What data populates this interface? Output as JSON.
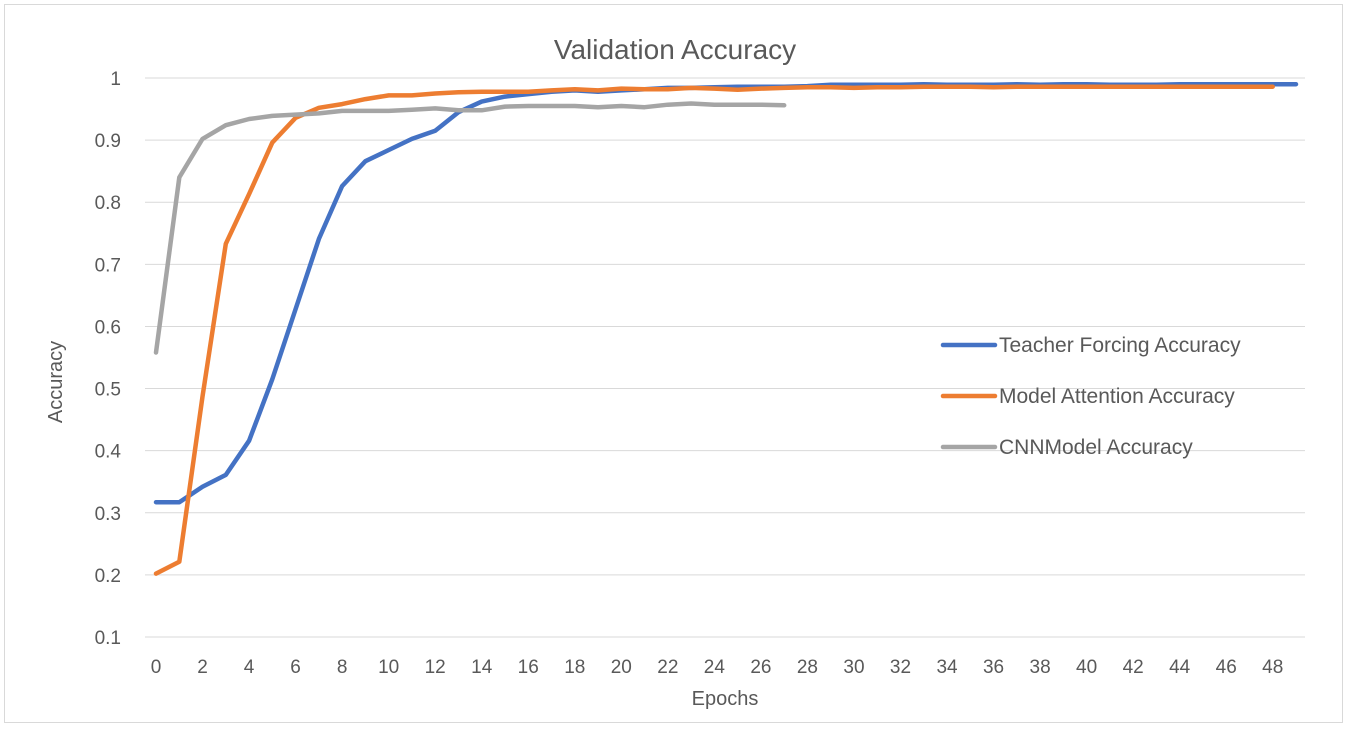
{
  "chart_data": {
    "type": "line",
    "title": "Validation Accuracy",
    "xlabel": "Epochs",
    "ylabel": "Accuracy",
    "xlim": [
      0,
      49
    ],
    "ylim": [
      0.1,
      1.0
    ],
    "yticks": [
      "0.1",
      "0.2",
      "0.3",
      "0.4",
      "0.5",
      "0.6",
      "0.7",
      "0.8",
      "0.9",
      "1"
    ],
    "xticks": [
      "0",
      "2",
      "4",
      "6",
      "8",
      "10",
      "12",
      "14",
      "16",
      "18",
      "20",
      "22",
      "24",
      "26",
      "28",
      "30",
      "32",
      "34",
      "36",
      "38",
      "40",
      "42",
      "44",
      "46",
      "48"
    ],
    "grid": "horizontal",
    "legend_position": "right",
    "series": [
      {
        "name": "Teacher Forcing Accuracy",
        "color": "#4472C4",
        "values": [
          0.317,
          0.317,
          0.342,
          0.361,
          0.416,
          0.515,
          0.628,
          0.741,
          0.826,
          0.866,
          0.884,
          0.902,
          0.915,
          0.945,
          0.962,
          0.97,
          0.974,
          0.978,
          0.98,
          0.978,
          0.98,
          0.982,
          0.984,
          0.984,
          0.985,
          0.986,
          0.986,
          0.986,
          0.987,
          0.989,
          0.989,
          0.989,
          0.989,
          0.99,
          0.989,
          0.989,
          0.989,
          0.99,
          0.989,
          0.99,
          0.99,
          0.989,
          0.989,
          0.989,
          0.99,
          0.99,
          0.99,
          0.99,
          0.99,
          0.99
        ]
      },
      {
        "name": "Model Attention Accuracy",
        "color": "#ED7D31",
        "values": [
          0.202,
          0.221,
          0.487,
          0.733,
          0.813,
          0.896,
          0.936,
          0.952,
          0.958,
          0.966,
          0.972,
          0.972,
          0.975,
          0.977,
          0.978,
          0.978,
          0.978,
          0.98,
          0.982,
          0.98,
          0.983,
          0.982,
          0.982,
          0.984,
          0.983,
          0.981,
          0.983,
          0.984,
          0.985,
          0.985,
          0.984,
          0.985,
          0.985,
          0.986,
          0.986,
          0.986,
          0.985,
          0.986,
          0.986,
          0.986,
          0.986,
          0.986,
          0.986,
          0.986,
          0.986,
          0.986,
          0.986,
          0.986,
          0.986
        ]
      },
      {
        "name": "CNNModel Accuracy",
        "color": "#A5A5A5",
        "values": [
          0.558,
          0.84,
          0.902,
          0.924,
          0.934,
          0.939,
          0.941,
          0.943,
          0.947,
          0.947,
          0.947,
          0.949,
          0.951,
          0.948,
          0.948,
          0.954,
          0.955,
          0.955,
          0.955,
          0.953,
          0.955,
          0.953,
          0.957,
          0.959,
          0.957,
          0.957,
          0.957,
          0.956
        ]
      }
    ]
  }
}
